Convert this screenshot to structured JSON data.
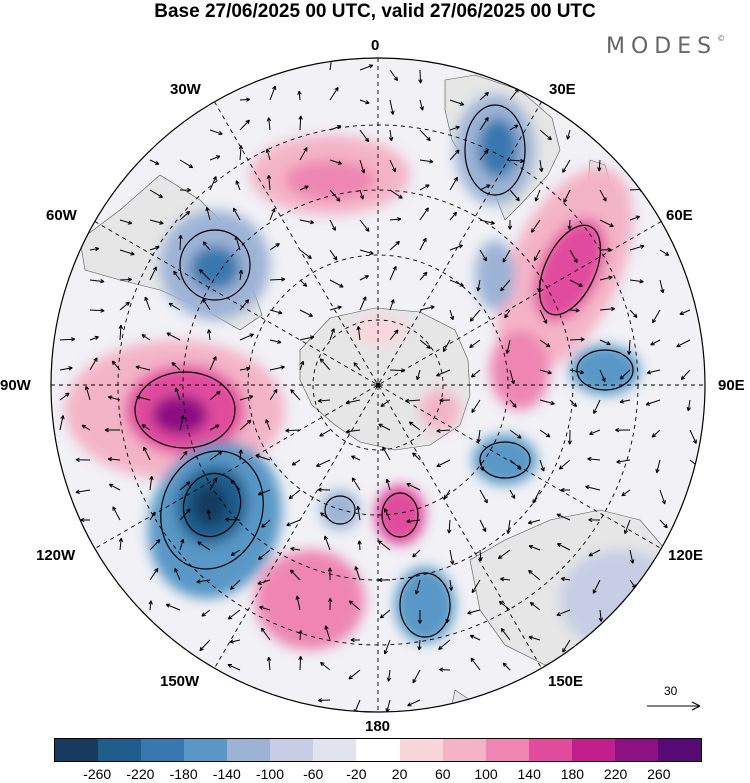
{
  "header": {
    "title": "Base 27/06/2025 00 UTC, valid 27/06/2025 00 UTC"
  },
  "brand": {
    "text": "MODES",
    "mark": "©"
  },
  "map": {
    "projection": "south polar stereographic",
    "longitude_labels": [
      "0",
      "30E",
      "60E",
      "90E",
      "120E",
      "150E",
      "180",
      "150W",
      "120W",
      "90W",
      "60W",
      "30W"
    ],
    "reference_vector_label": "30",
    "colors": {
      "land": "#e8e8e8",
      "contour": "#000000",
      "grid": "#000000"
    }
  },
  "colorbar": {
    "ticks": [
      "-260",
      "-220",
      "-180",
      "-140",
      "-100",
      "-60",
      "-20",
      "20",
      "60",
      "100",
      "140",
      "180",
      "220",
      "260"
    ],
    "colors": [
      "#173a5e",
      "#1f5d8c",
      "#3778ae",
      "#5897c6",
      "#9db3d6",
      "#c6cde4",
      "#e3e3ef",
      "#ffffff",
      "#f8d6dc",
      "#f4b4c7",
      "#ee86b1",
      "#e14c9e",
      "#c21e8d",
      "#8e1183",
      "#560a73"
    ]
  }
}
